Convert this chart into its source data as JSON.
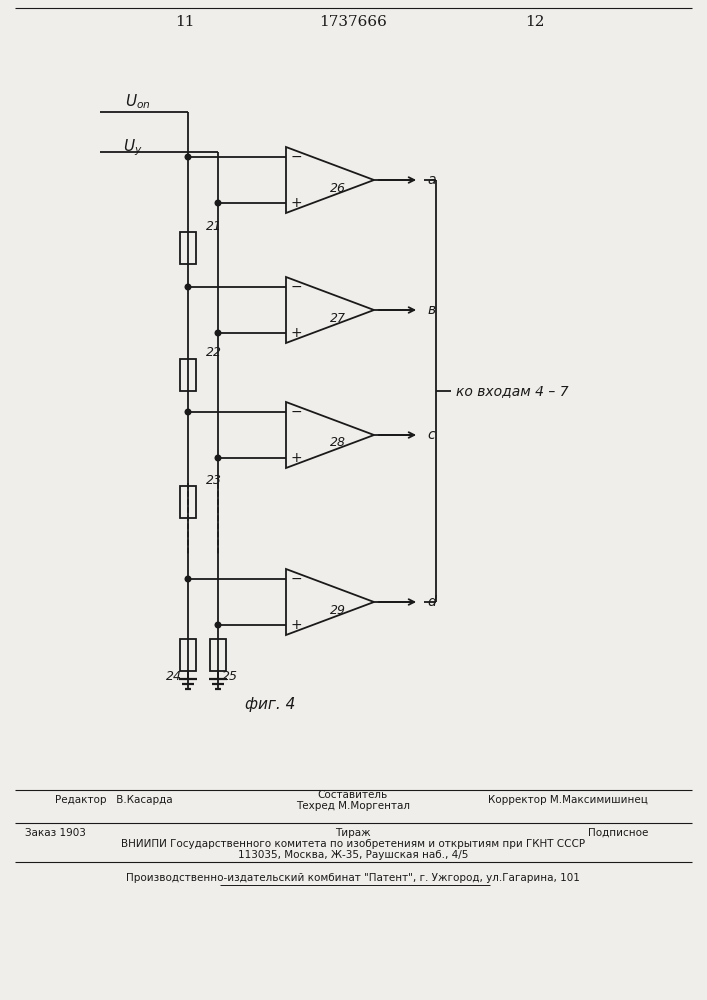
{
  "page_number_left": "11",
  "page_number_center": "1737666",
  "page_number_right": "12",
  "figure_label": "фиг. 4",
  "uon_label": "$U_{on}$",
  "uu_label": "$U_y$",
  "comparator_labels": [
    "26",
    "27",
    "28",
    "29"
  ],
  "resistor_labels_left": [
    "21",
    "22",
    "23"
  ],
  "resistor_labels_bottom": [
    "24",
    "25"
  ],
  "output_labels": [
    "a",
    "в",
    "c",
    "d"
  ],
  "annotation": "ко входам 4 – 7",
  "footer_line1_left": "Редактор   В.Касарда",
  "footer_line1_center": "Составитель",
  "footer_line1_center2": "Техред М.Моргентал",
  "footer_line1_right": "Корректор М.Максимишинец",
  "footer_line2_left": "Заказ 1903",
  "footer_line2_center": "Тираж",
  "footer_line2_right": "Подписное",
  "footer_line3": "ВНИИПИ Государственного комитета по изобретениям и открытиям при ГКНТ СССР",
  "footer_line4": "113035, Москва, Ж-35, Раушская наб., 4/5",
  "footer_line5": "Производственно-издательский комбинат \"Патент\", г. Ужгород, ул.Гагарина, 101",
  "bg_color": "#f0eeea",
  "line_color": "#1a1a1a",
  "text_color": "#1a1a1a"
}
